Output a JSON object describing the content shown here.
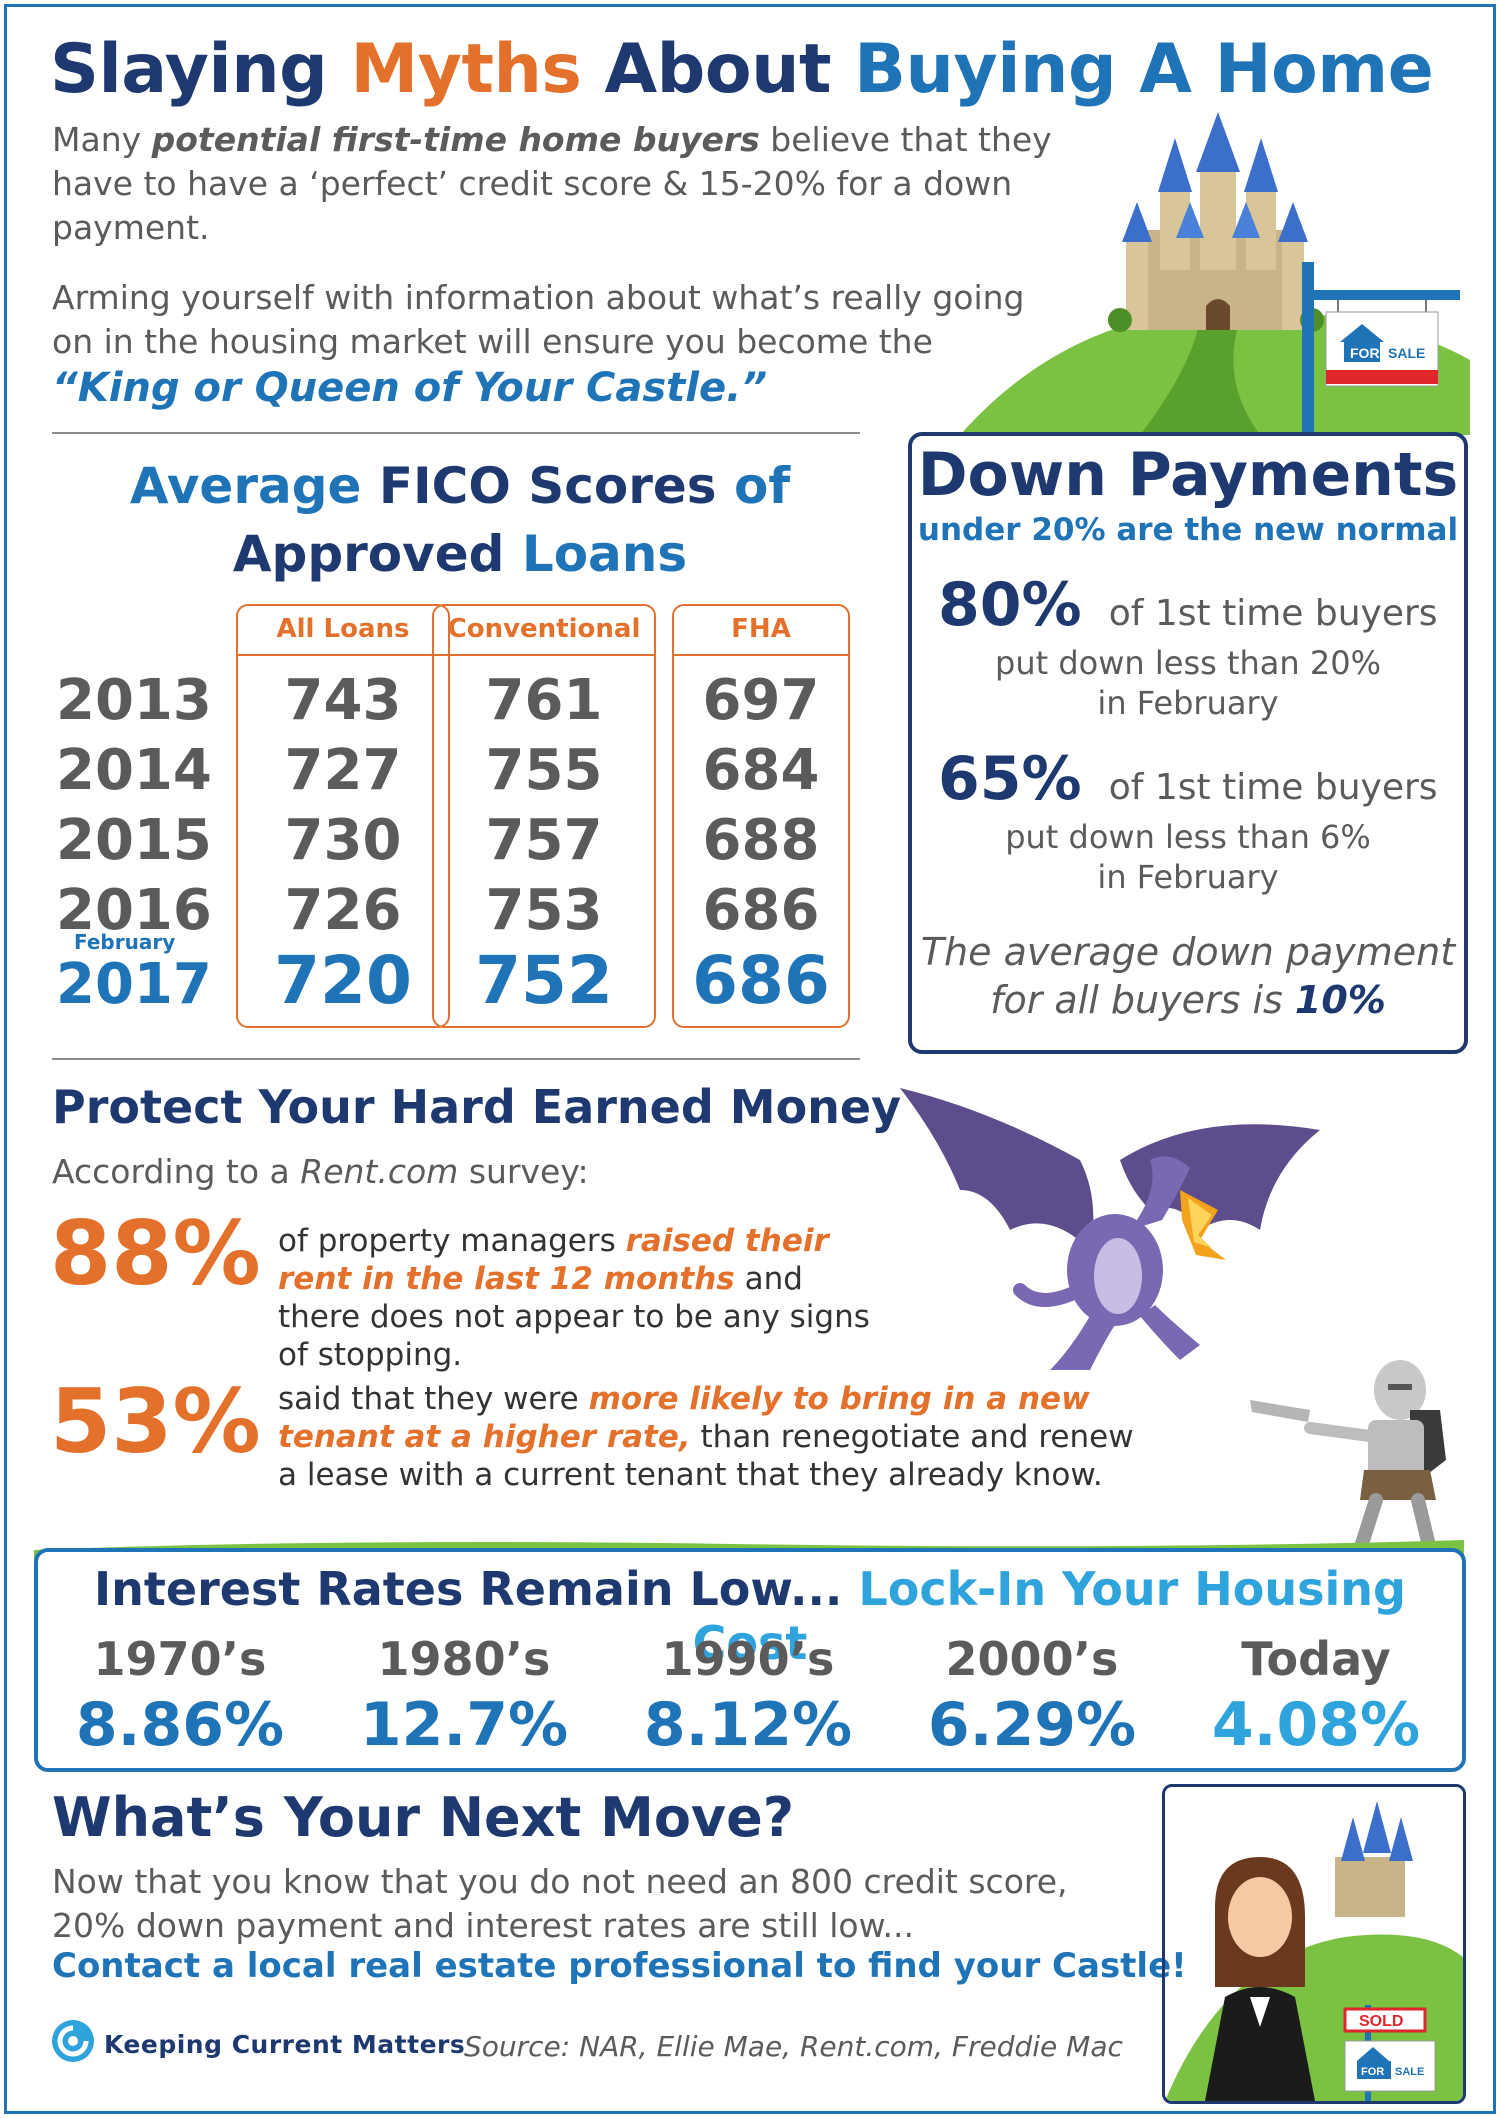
{
  "title": {
    "part1": "Slaying ",
    "part2": "Myths",
    "part3": " About ",
    "part4": "Buying A Home"
  },
  "intro": {
    "line_a1": "Many ",
    "line_a_em": "potential first-time home buyers",
    "line_a2": " believe that they have to have a ‘perfect’ credit score & 15-20% for a down payment.",
    "line_b": "Arming yourself with information about what’s really going on in the housing market will ensure you become the",
    "king": "“King or Queen of Your Castle.”"
  },
  "sign": {
    "for_sale": "FOR SALE",
    "for": "FOR",
    "sale": "SALE",
    "sold": "SOLD"
  },
  "fico": {
    "title_a1": "Average ",
    "title_a2": "FICO Scores",
    "title_a3": " of",
    "title_b1": "Approved",
    "title_b2": " Loans",
    "feb_label": "February"
  },
  "chart_data": {
    "type": "table",
    "title": "Average FICO Scores of Approved Loans",
    "columns": [
      "All Loans",
      "Conventional",
      "FHA"
    ],
    "rows": [
      {
        "year": "2013",
        "values": [
          743,
          761,
          697
        ]
      },
      {
        "year": "2014",
        "values": [
          727,
          755,
          684
        ]
      },
      {
        "year": "2015",
        "values": [
          730,
          757,
          688
        ]
      },
      {
        "year": "2016",
        "values": [
          726,
          753,
          686
        ]
      },
      {
        "year": "2017",
        "note": "February",
        "values": [
          720,
          752,
          686
        ]
      }
    ]
  },
  "down_payments": {
    "heading": "Down Payments",
    "sub": "under 20% are the new normal",
    "stat1_pct": "80%",
    "stat1_lead": "of 1st time buyers",
    "stat1_l2": "put down less than 20%",
    "stat1_l3": "in February",
    "stat2_pct": "65%",
    "stat2_lead": "of 1st time buyers",
    "stat2_l2": "put down less than 6%",
    "stat2_l3": "in February",
    "avg_l1": "The average down payment",
    "avg_l2": "for all buyers is ",
    "avg_val": "10%"
  },
  "protect": {
    "heading": "Protect Your Hard Earned Money",
    "sub_a": "According to a ",
    "sub_em": "Rent.com",
    "sub_b": " survey:",
    "stat1_pct": "88%",
    "stat1_a": "of property managers ",
    "stat1_hl": "raised their rent in the last 12 months",
    "stat1_b": " and there does not appear to be any signs of stopping.",
    "stat2_pct": "53%",
    "stat2_a": "said that they were ",
    "stat2_hl": "more likely to bring in a new tenant at a higher rate,",
    "stat2_b": " than renegotiate and renew a lease with a current tenant that they already know."
  },
  "interest": {
    "title_a": "Interest Rates Remain Low... ",
    "title_b": "Lock-In Your Housing Cost",
    "periods": [
      "1970’s",
      "1980’s",
      "1990’s",
      "2000’s",
      "Today"
    ],
    "rates": [
      "8.86%",
      "12.7%",
      "8.12%",
      "6.29%",
      "4.08%"
    ]
  },
  "next_move": {
    "heading": "What’s Your Next Move?",
    "text": "Now that you know that you do not need an 800 credit score, 20% down payment and interest rates are still low...",
    "cta": "Contact a local real estate professional to find your Castle!"
  },
  "footer": {
    "brand": "Keeping Current Matters",
    "source": "Source: NAR, Ellie Mae, Rent.com, Freddie Mac"
  },
  "colors": {
    "navy": "#1d3970",
    "blue": "#1f73b7",
    "orange": "#e4712b",
    "gray": "#5b5b5b",
    "green": "#7cc242",
    "purple": "#6a5a9c"
  },
  "icons": [
    "castle-icon",
    "for-sale-sign-icon",
    "dragon-icon",
    "knight-icon",
    "realtor-icon",
    "sold-sign-icon",
    "kcm-logo-icon"
  ]
}
